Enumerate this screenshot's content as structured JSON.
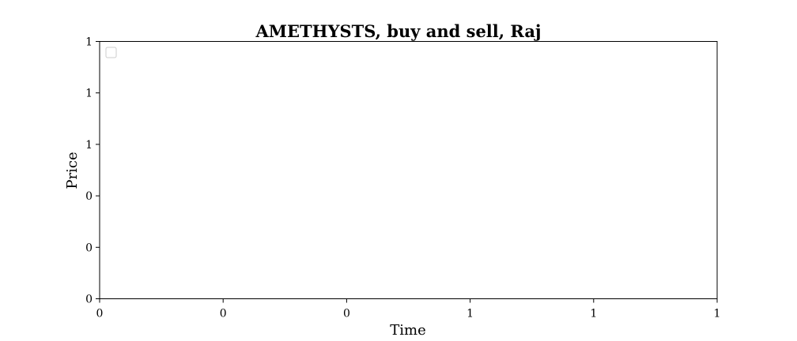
{
  "chart_data": {
    "type": "line",
    "title": "AMETHYSTS, buy and sell, Raj",
    "xlabel": "Time",
    "ylabel": "Price",
    "x_tick_labels": [
      "0",
      "0",
      "0",
      "1",
      "1",
      "1"
    ],
    "y_tick_labels": [
      "0",
      "0",
      "0",
      "1",
      "1",
      "1"
    ],
    "series": [],
    "grid": false,
    "legend_placement": "top-left",
    "legend_entries": []
  },
  "colors": {
    "axis": "#000000",
    "background": "#ffffff",
    "legend_border": "#cccccc"
  }
}
